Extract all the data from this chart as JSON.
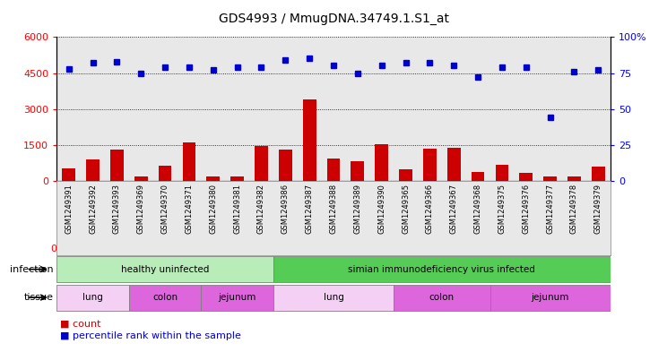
{
  "title": "GDS4993 / MmugDNA.34749.1.S1_at",
  "samples": [
    "GSM1249391",
    "GSM1249392",
    "GSM1249393",
    "GSM1249369",
    "GSM1249370",
    "GSM1249371",
    "GSM1249380",
    "GSM1249381",
    "GSM1249382",
    "GSM1249386",
    "GSM1249387",
    "GSM1249388",
    "GSM1249389",
    "GSM1249390",
    "GSM1249365",
    "GSM1249366",
    "GSM1249367",
    "GSM1249368",
    "GSM1249375",
    "GSM1249376",
    "GSM1249377",
    "GSM1249378",
    "GSM1249379"
  ],
  "counts": [
    550,
    900,
    1300,
    200,
    650,
    1600,
    200,
    200,
    1450,
    1300,
    3400,
    950,
    850,
    1550,
    500,
    1350,
    1400,
    400,
    700,
    350,
    200,
    200,
    600
  ],
  "percentiles": [
    78,
    82,
    83,
    75,
    79,
    79,
    77,
    79,
    79,
    84,
    85,
    80,
    75,
    80,
    82,
    82,
    80,
    72,
    79,
    79,
    44,
    76,
    77
  ],
  "infection_groups": [
    {
      "label": "healthy uninfected",
      "start": 0,
      "end": 9,
      "color": "#b8ecb8"
    },
    {
      "label": "simian immunodeficiency virus infected",
      "start": 9,
      "end": 23,
      "color": "#55cc55"
    }
  ],
  "tissue_groups": [
    {
      "label": "lung",
      "start": 0,
      "end": 3,
      "color": "#f4d0f4"
    },
    {
      "label": "colon",
      "start": 3,
      "end": 6,
      "color": "#dd66dd"
    },
    {
      "label": "jejunum",
      "start": 6,
      "end": 9,
      "color": "#dd66dd"
    },
    {
      "label": "lung",
      "start": 9,
      "end": 14,
      "color": "#f4d0f4"
    },
    {
      "label": "colon",
      "start": 14,
      "end": 18,
      "color": "#dd66dd"
    },
    {
      "label": "jejunum",
      "start": 18,
      "end": 23,
      "color": "#dd66dd"
    }
  ],
  "ylim_left": [
    0,
    6000
  ],
  "yticks_left": [
    0,
    1500,
    3000,
    4500,
    6000
  ],
  "ylim_right": [
    0,
    100
  ],
  "yticks_right": [
    0,
    25,
    50,
    75,
    100
  ],
  "bar_color": "#cc0000",
  "dot_color": "#0000cc",
  "bg_color": "#e8e8e8"
}
